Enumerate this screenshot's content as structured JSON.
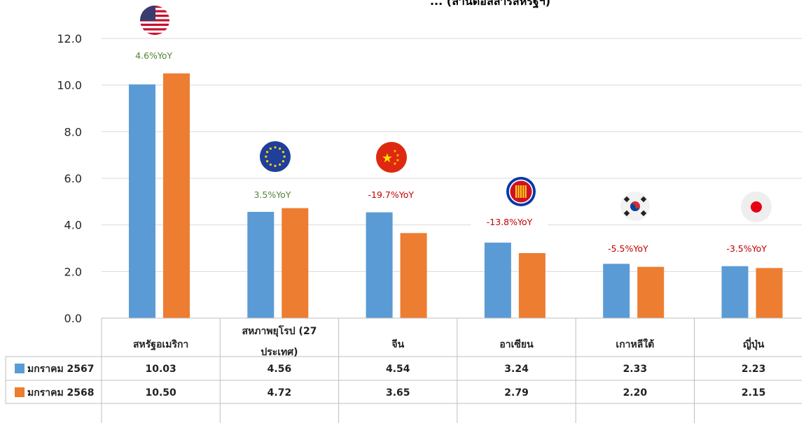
{
  "chart_data": {
    "type": "bar",
    "title": "... (ล้านดอลลาร์สหรัฐฯ)",
    "categories": [
      "สหรัฐอเมริกา",
      "สหภาพยุโรป (27 ประเทศ)",
      "จีน",
      "อาเซียน",
      "เกาหลีใต้",
      "ญี่ปุ่น"
    ],
    "category_lines": [
      [
        "สหรัฐอเมริกา"
      ],
      [
        "สหภาพยุโรป (27",
        "ประเทศ)"
      ],
      [
        "จีน"
      ],
      [
        "อาเซียน"
      ],
      [
        "เกาหลีใต้"
      ],
      [
        "ญี่ปุ่น"
      ]
    ],
    "series": [
      {
        "name": "มกราคม 2567",
        "color": "#5B9BD5",
        "values": [
          10.03,
          4.56,
          4.54,
          3.24,
          2.33,
          2.23
        ]
      },
      {
        "name": "มกราคม 2568",
        "color": "#ED7D31",
        "values": [
          10.5,
          4.72,
          3.65,
          2.79,
          2.2,
          2.15
        ]
      }
    ],
    "table_values": [
      [
        "10.03",
        "4.56",
        "4.54",
        "3.24",
        "2.33",
        "2.23"
      ],
      [
        "10.50",
        "4.72",
        "3.65",
        "2.79",
        "2.20",
        "2.15"
      ]
    ],
    "annotations": [
      "4.6%YoY",
      "3.5%YoY",
      "-19.7%YoY",
      "-13.8%YoY",
      "-5.5%YoY",
      "-3.5%YoY"
    ],
    "annotation_colors": [
      "#548235",
      "#548235",
      "#C00000",
      "#C00000",
      "#C00000",
      "#C00000"
    ],
    "flag_icons": [
      "us-flag-icon",
      "eu-flag-icon",
      "china-flag-icon",
      "asean-flag-icon",
      "south-korea-flag-icon",
      "japan-flag-icon"
    ],
    "yticks": [
      "0.0",
      "2.0",
      "4.0",
      "6.0",
      "8.0",
      "10.0",
      "12.0"
    ],
    "ylim": [
      0,
      12
    ],
    "grid": true,
    "legend": "data-table"
  }
}
